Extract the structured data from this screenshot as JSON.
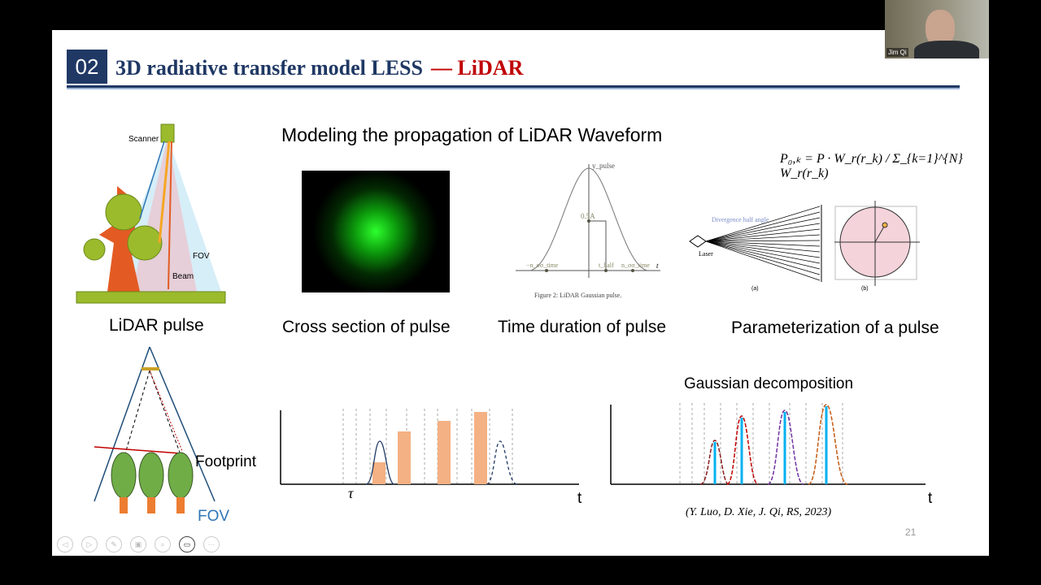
{
  "video": {
    "participant_name": "Jim Qi"
  },
  "slide": {
    "section_number": "02",
    "title": "3D radiative transfer model LESS",
    "title_suffix": "— LiDAR",
    "heading": "Modeling the propagation of LiDAR Waveform",
    "figure1": {
      "scanner": "Scanner",
      "fov": "FOV",
      "beam": "Beam",
      "caption": "LiDAR pulse"
    },
    "figure2": {
      "caption": "Cross section of pulse"
    },
    "figure3": {
      "y_label": "y_pulse",
      "half": "0.5A",
      "left": "−n_σσ_time",
      "thalf": "t_half",
      "right": "n_σσ_time",
      "t": "t",
      "fig_caption": "Figure 2: LiDAR Gaussian pulse.",
      "caption": "Time duration of pulse"
    },
    "figure4": {
      "formula": "P₀,ₖ = P · W_r(r_k) / Σ_{k=1}^{N} W_r(r_k)",
      "div": "Divergence half angle",
      "laser": "Laser",
      "a": "(a)",
      "b": "(b)",
      "caption": "Parameterization of a pulse"
    },
    "figure5": {
      "footprint": "Footprint",
      "fov": "FOV"
    },
    "figure6": {
      "tau": "τ",
      "t": "t"
    },
    "figure7": {
      "title": "Gaussian decomposition",
      "t": "t",
      "citation": "(Y. Luo, D. Xie, J. Qi, RS, 2023)"
    },
    "page_number": "21"
  },
  "controls": [
    "previous",
    "next",
    "pen",
    "slides",
    "zoom",
    "camera",
    "more"
  ],
  "colors": {
    "navy": "#1f3864",
    "red": "#c00000",
    "green": "#9bbb2c",
    "orange": "#f4b183"
  }
}
